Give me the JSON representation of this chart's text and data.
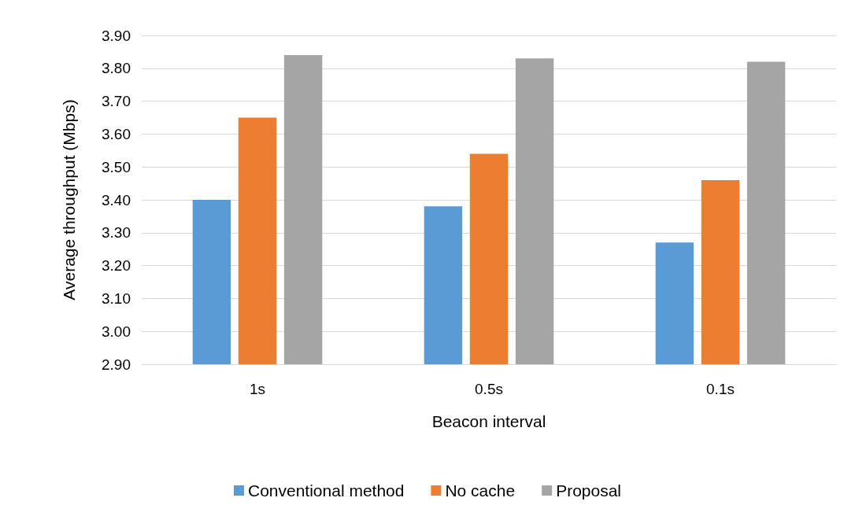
{
  "chart_data": {
    "type": "bar",
    "xlabel": "Beacon interval",
    "ylabel": "Average throughput (Mbps)",
    "categories": [
      "1s",
      "0.5s",
      "0.1s"
    ],
    "series": [
      {
        "name": "Conventional method",
        "color": "#5b9bd5",
        "values": [
          3.4,
          3.38,
          3.27
        ]
      },
      {
        "name": "No cache",
        "color": "#ed7d31",
        "values": [
          3.65,
          3.54,
          3.46
        ]
      },
      {
        "name": "Proposal",
        "color": "#a5a5a5",
        "values": [
          3.84,
          3.83,
          3.82
        ]
      }
    ],
    "ylim": [
      2.9,
      3.9
    ],
    "yticks": [
      {
        "value": 2.9,
        "label": "2.90"
      },
      {
        "value": 3.0,
        "label": "3.00"
      },
      {
        "value": 3.1,
        "label": "3.10"
      },
      {
        "value": 3.2,
        "label": "3.20"
      },
      {
        "value": 3.3,
        "label": "3.30"
      },
      {
        "value": 3.4,
        "label": "3.40"
      },
      {
        "value": 3.5,
        "label": "3.50"
      },
      {
        "value": 3.6,
        "label": "3.60"
      },
      {
        "value": 3.7,
        "label": "3.70"
      },
      {
        "value": 3.8,
        "label": "3.80"
      },
      {
        "value": 3.9,
        "label": "3.90"
      }
    ],
    "grid": "y",
    "legend": "bottom"
  }
}
